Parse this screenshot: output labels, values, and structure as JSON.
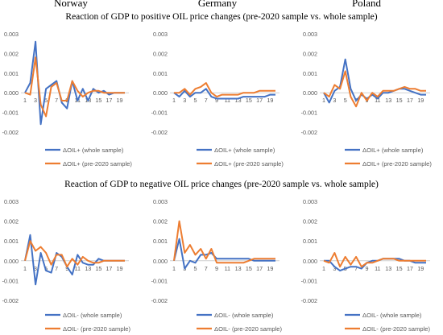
{
  "figure": {
    "countries": [
      "Norway",
      "Germany",
      "Poland"
    ],
    "row_titles": [
      "Reaction of GDP to positive OIL price changes (pre-2020 sample vs. whole sample)",
      "Reaction of GDP to negative OIL price changes (pre-2020 sample vs. whole sample)"
    ]
  },
  "colors": {
    "whole": "#4472C4",
    "pre2020": "#ED7D31",
    "axis": "#d0d0d0",
    "text": "#595959"
  },
  "chart_data": [
    {
      "type": "line",
      "country": "Norway",
      "shock": "positive",
      "x": [
        1,
        2,
        3,
        4,
        5,
        6,
        7,
        8,
        9,
        10,
        11,
        12,
        13,
        14,
        15,
        16,
        17,
        18,
        19,
        20
      ],
      "xticks": [
        "1",
        "3",
        "5",
        "7",
        "9",
        "11",
        "13",
        "15",
        "17",
        "19"
      ],
      "yticks": [
        "0.003",
        "0.002",
        "0.001",
        "0.000",
        "-0.001",
        "-0.002"
      ],
      "ylim": [
        -0.002,
        0.003
      ],
      "series": [
        {
          "name": "ΔOIL+ (whole sample)",
          "values": [
            0,
            0.0005,
            0.0026,
            -0.0016,
            0.0002,
            0.0004,
            0.0006,
            -0.0005,
            -0.0008,
            0.0006,
            -0.0004,
            0.0002,
            -0.0004,
            0.0002,
            0,
            0.0001,
            -0.0001,
            0,
            0,
            0
          ]
        },
        {
          "name": "ΔOIL+ (pre-2020 sample)",
          "values": [
            0,
            -0.0001,
            0.0018,
            -0.0006,
            -0.0012,
            0.0003,
            0.0005,
            -0.0004,
            -0.0004,
            0.0006,
            0.0001,
            -0.0002,
            0,
            0.0001,
            0.0001,
            0,
            0,
            0,
            0,
            0
          ]
        }
      ]
    },
    {
      "type": "line",
      "country": "Germany",
      "shock": "positive",
      "x": [
        1,
        2,
        3,
        4,
        5,
        6,
        7,
        8,
        9,
        10,
        11,
        12,
        13,
        14,
        15,
        16,
        17,
        18,
        19,
        20
      ],
      "xticks": [
        "1",
        "3",
        "5",
        "7",
        "9",
        "11",
        "13",
        "15",
        "17",
        "19"
      ],
      "yticks": [
        "0.003",
        "0.002",
        "0.001",
        "0.000",
        "-0.001",
        "-0.002"
      ],
      "ylim": [
        -0.002,
        0.003
      ],
      "series": [
        {
          "name": "ΔOIL+ (whole sample)",
          "values": [
            0,
            -0.0002,
            0.0001,
            -0.0002,
            0,
            0,
            0.0002,
            -0.0002,
            -0.0003,
            -0.0003,
            -0.0003,
            -0.0003,
            -0.0003,
            -0.0002,
            -0.0002,
            -0.0002,
            -0.0002,
            -0.0002,
            -0.0001,
            -0.0001
          ]
        },
        {
          "name": "ΔOIL+ (pre-2020 sample)",
          "values": [
            0,
            0,
            0.0002,
            -0.0001,
            0.0002,
            0.0003,
            0.0005,
            0,
            -0.0002,
            -0.0001,
            -0.0001,
            -0.0001,
            -0.0001,
            0,
            0,
            0,
            0.0001,
            0.0001,
            0.0001,
            0.0001
          ]
        }
      ]
    },
    {
      "type": "line",
      "country": "Poland",
      "shock": "positive",
      "x": [
        1,
        2,
        3,
        4,
        5,
        6,
        7,
        8,
        9,
        10,
        11,
        12,
        13,
        14,
        15,
        16,
        17,
        18,
        19,
        20
      ],
      "xticks": [
        "1",
        "3",
        "5",
        "7",
        "9",
        "11",
        "13",
        "15",
        "17",
        "19"
      ],
      "yticks": [
        "0.003",
        "0.002",
        "0.001",
        "0.000",
        "-0.001",
        "-0.002"
      ],
      "ylim": [
        -0.002,
        0.003
      ],
      "series": [
        {
          "name": "ΔOIL+ (whole sample)",
          "values": [
            0,
            -0.0005,
            0.0001,
            0.0003,
            0.0017,
            0.0002,
            -0.0004,
            -0.0001,
            -0.0003,
            -0.0001,
            -0.0003,
            0,
            0,
            0.0001,
            0.0002,
            0.0002,
            0.0001,
            0,
            -0.0001,
            -0.0001
          ]
        },
        {
          "name": "ΔOIL+ (pre-2020 sample)",
          "values": [
            0,
            -0.0002,
            0.0004,
            0.0002,
            0.0011,
            -0.0002,
            -0.0007,
            0,
            -0.0004,
            0,
            -0.0002,
            0.0001,
            0.0001,
            0.0001,
            0.0002,
            0.0003,
            0.0002,
            0.0002,
            0.0001,
            0.0001
          ]
        }
      ]
    },
    {
      "type": "line",
      "country": "Norway",
      "shock": "negative",
      "x": [
        1,
        2,
        3,
        4,
        5,
        6,
        7,
        8,
        9,
        10,
        11,
        12,
        13,
        14,
        15,
        16,
        17,
        18,
        19,
        20
      ],
      "xticks": [
        "1",
        "3",
        "5",
        "7",
        "9",
        "11",
        "13",
        "15",
        "17",
        "19"
      ],
      "yticks": [
        "0.003",
        "0.002",
        "0.001",
        "0.000",
        "-0.001",
        "-0.002"
      ],
      "ylim": [
        -0.002,
        0.003
      ],
      "series": [
        {
          "name": "ΔOIL- (whole sample)",
          "values": [
            0,
            0.0013,
            -0.0012,
            0.0004,
            -0.0005,
            -0.0006,
            0.0004,
            0.0002,
            -0.0003,
            -0.0007,
            0.0003,
            -0.0001,
            -0.0002,
            -0.0002,
            0.0001,
            0,
            0,
            0,
            0,
            0
          ]
        },
        {
          "name": "ΔOIL- (pre-2020 sample)",
          "values": [
            0,
            0.001,
            0.0005,
            0.0007,
            0.0004,
            -0.0002,
            0.0003,
            0.0003,
            -0.0003,
            0.0001,
            -0.0002,
            0.0002,
            0,
            -0.0001,
            -0.0001,
            0,
            0,
            0,
            0,
            0
          ]
        }
      ]
    },
    {
      "type": "line",
      "country": "Germany",
      "shock": "negative",
      "x": [
        1,
        2,
        3,
        4,
        5,
        6,
        7,
        8,
        9,
        10,
        11,
        12,
        13,
        14,
        15,
        16,
        17,
        18,
        19,
        20
      ],
      "xticks": [
        "1",
        "3",
        "5",
        "7",
        "9",
        "11",
        "13",
        "15",
        "17",
        "19"
      ],
      "yticks": [
        "0.003",
        "0.002",
        "0.001",
        "0.000",
        "-0.001",
        "-0.002"
      ],
      "ylim": [
        -0.002,
        0.003
      ],
      "series": [
        {
          "name": "ΔOIL- (whole sample)",
          "values": [
            0,
            0.0011,
            -0.0004,
            0,
            -0.0001,
            0.0003,
            0.0003,
            0.0004,
            0.0001,
            0.0001,
            0.0001,
            0.0001,
            0.0001,
            0.0001,
            0.0001,
            0,
            0,
            0,
            0,
            0
          ]
        },
        {
          "name": "ΔOIL- (pre-2020 sample)",
          "values": [
            0,
            0.002,
            0.0004,
            0.0008,
            0.0003,
            0.0006,
            0.0001,
            0.0006,
            -0.0001,
            -0.0001,
            -0.0001,
            -0.0001,
            -0.0001,
            -0.0001,
            0,
            0.0001,
            0.0001,
            0.0001,
            0.0001,
            0.0001
          ]
        }
      ]
    },
    {
      "type": "line",
      "country": "Poland",
      "shock": "negative",
      "x": [
        1,
        2,
        3,
        4,
        5,
        6,
        7,
        8,
        9,
        10,
        11,
        12,
        13,
        14,
        15,
        16,
        17,
        18,
        19,
        20
      ],
      "xticks": [
        "1",
        "3",
        "5",
        "7",
        "9",
        "11",
        "13",
        "15",
        "17",
        "19"
      ],
      "yticks": [
        "0.003",
        "0.002",
        "0.001",
        "0.000",
        "-0.001",
        "-0.002"
      ],
      "ylim": [
        -0.002,
        0.003
      ],
      "series": [
        {
          "name": "ΔOIL- (whole sample)",
          "values": [
            0,
            0,
            -0.0003,
            -0.0005,
            -0.0004,
            -0.0003,
            -0.0003,
            -0.0004,
            -0.0001,
            0,
            0,
            0.0001,
            0.0001,
            0.0001,
            0.0001,
            0,
            0,
            -0.0001,
            -0.0001,
            -0.0001
          ]
        },
        {
          "name": "ΔOIL- (pre-2020 sample)",
          "values": [
            0,
            -0.0001,
            0.0004,
            -0.0003,
            0.0002,
            -0.0002,
            0.0002,
            -0.0003,
            -0.0001,
            -0.0001,
            0,
            0.0001,
            0.0001,
            0.0001,
            0,
            0,
            0,
            0,
            0,
            0
          ]
        }
      ]
    }
  ]
}
